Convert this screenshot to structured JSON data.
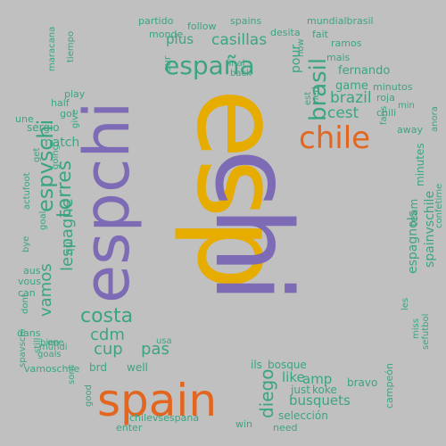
{
  "palette": {
    "background": "#c0c0c0",
    "gold": "#e6ac00",
    "purple": "#7e6bb5",
    "teal": "#3aa580",
    "orange": "#e2661f"
  },
  "words": [
    {
      "text": "esp",
      "color": "gold"
    },
    {
      "text": "chi",
      "color": "purple"
    },
    {
      "text": "spain",
      "color": "orange"
    },
    {
      "text": "espchi",
      "color": "purple"
    },
    {
      "text": "chile",
      "color": "orange"
    },
    {
      "text": "españa",
      "color": "teal"
    },
    {
      "text": "brasil",
      "color": "teal"
    },
    {
      "text": "espvschi",
      "color": "teal"
    },
    {
      "text": "torres",
      "color": "teal"
    },
    {
      "text": "costa",
      "color": "teal"
    },
    {
      "text": "lespagne",
      "color": "teal"
    },
    {
      "text": "vamos",
      "color": "teal"
    },
    {
      "text": "cdm",
      "color": "teal"
    },
    {
      "text": "pas",
      "color": "teal"
    },
    {
      "text": "cup",
      "color": "teal"
    },
    {
      "text": "brazil",
      "color": "teal"
    },
    {
      "text": "cest",
      "color": "teal"
    },
    {
      "text": "diego",
      "color": "teal"
    },
    {
      "text": "like",
      "color": "teal"
    },
    {
      "text": "amp",
      "color": "teal"
    },
    {
      "text": "busquets",
      "color": "teal"
    },
    {
      "text": "casillas",
      "color": "teal"
    },
    {
      "text": "plus",
      "color": "teal"
    },
    {
      "text": "fernando",
      "color": "teal"
    },
    {
      "text": "game",
      "color": "teal"
    },
    {
      "text": "espagnols",
      "color": "teal"
    },
    {
      "text": "spainvschile",
      "color": "teal"
    },
    {
      "text": "team",
      "color": "teal"
    },
    {
      "text": "match",
      "color": "teal"
    },
    {
      "text": "sergio",
      "color": "teal"
    },
    {
      "text": "ils",
      "color": "teal"
    },
    {
      "text": "bosque",
      "color": "teal"
    },
    {
      "text": "just",
      "color": "teal"
    },
    {
      "text": "koke",
      "color": "teal"
    },
    {
      "text": "bravo",
      "color": "teal"
    },
    {
      "text": "selección",
      "color": "teal"
    },
    {
      "text": "chilevsespana",
      "color": "teal"
    },
    {
      "text": "win",
      "color": "teal"
    },
    {
      "text": "enter",
      "color": "teal"
    },
    {
      "text": "need",
      "color": "teal"
    },
    {
      "text": "campeón",
      "color": "teal"
    },
    {
      "text": "partido",
      "color": "teal"
    },
    {
      "text": "follow",
      "color": "teal"
    },
    {
      "text": "spains",
      "color": "teal"
    },
    {
      "text": "mundialbrasil",
      "color": "teal"
    },
    {
      "text": "monde",
      "color": "teal"
    },
    {
      "text": "desita",
      "color": "teal"
    },
    {
      "text": "fait",
      "color": "teal"
    },
    {
      "text": "ramos",
      "color": "teal"
    },
    {
      "text": "mais",
      "color": "teal"
    },
    {
      "text": "pour",
      "color": "teal"
    },
    {
      "text": "sur",
      "color": "teal"
    },
    {
      "text": "final",
      "color": "teal"
    },
    {
      "text": "back",
      "color": "teal"
    },
    {
      "text": "now",
      "color": "teal"
    },
    {
      "text": "est",
      "color": "teal"
    },
    {
      "text": "ned",
      "color": "teal"
    },
    {
      "text": "minutos",
      "color": "teal"
    },
    {
      "text": "roja",
      "color": "teal"
    },
    {
      "text": "min",
      "color": "teal"
    },
    {
      "text": "chili",
      "color": "teal"
    },
    {
      "text": "away",
      "color": "teal"
    },
    {
      "text": "anora",
      "color": "teal"
    },
    {
      "text": "minutes",
      "color": "teal"
    },
    {
      "text": "fans",
      "color": "teal"
    },
    {
      "text": "confetime",
      "color": "teal"
    },
    {
      "text": "miss",
      "color": "teal"
    },
    {
      "text": "sefutbol",
      "color": "teal"
    },
    {
      "text": "well",
      "color": "teal"
    },
    {
      "text": "brd",
      "color": "teal"
    },
    {
      "text": "usa",
      "color": "teal"
    },
    {
      "text": "bien",
      "color": "teal"
    },
    {
      "text": "mundi",
      "color": "teal"
    },
    {
      "text": "vamoschile",
      "color": "teal"
    },
    {
      "text": "goals",
      "color": "teal"
    },
    {
      "text": "sont",
      "color": "teal"
    },
    {
      "text": "good",
      "color": "teal"
    },
    {
      "text": "tiempo",
      "color": "teal"
    },
    {
      "text": "maracana",
      "color": "teal"
    },
    {
      "text": "play",
      "color": "teal"
    },
    {
      "text": "half",
      "color": "teal"
    },
    {
      "text": "gol",
      "color": "teal"
    },
    {
      "text": "une",
      "color": "teal"
    },
    {
      "text": "give",
      "color": "teal"
    },
    {
      "text": "get",
      "color": "teal"
    },
    {
      "text": "going",
      "color": "teal"
    },
    {
      "text": "actufoot",
      "color": "teal"
    },
    {
      "text": "goal",
      "color": "teal"
    },
    {
      "text": "bye",
      "color": "teal"
    },
    {
      "text": "aus",
      "color": "teal"
    },
    {
      "text": "vous",
      "color": "teal"
    },
    {
      "text": "can",
      "color": "teal"
    },
    {
      "text": "dont",
      "color": "teal"
    },
    {
      "text": "dans",
      "color": "teal"
    },
    {
      "text": "spavschi",
      "color": "teal"
    },
    {
      "text": "still",
      "color": "teal"
    },
    {
      "text": "qui",
      "color": "teal"
    },
    {
      "text": "one",
      "color": "teal"
    },
    {
      "text": "les",
      "color": "teal"
    }
  ]
}
